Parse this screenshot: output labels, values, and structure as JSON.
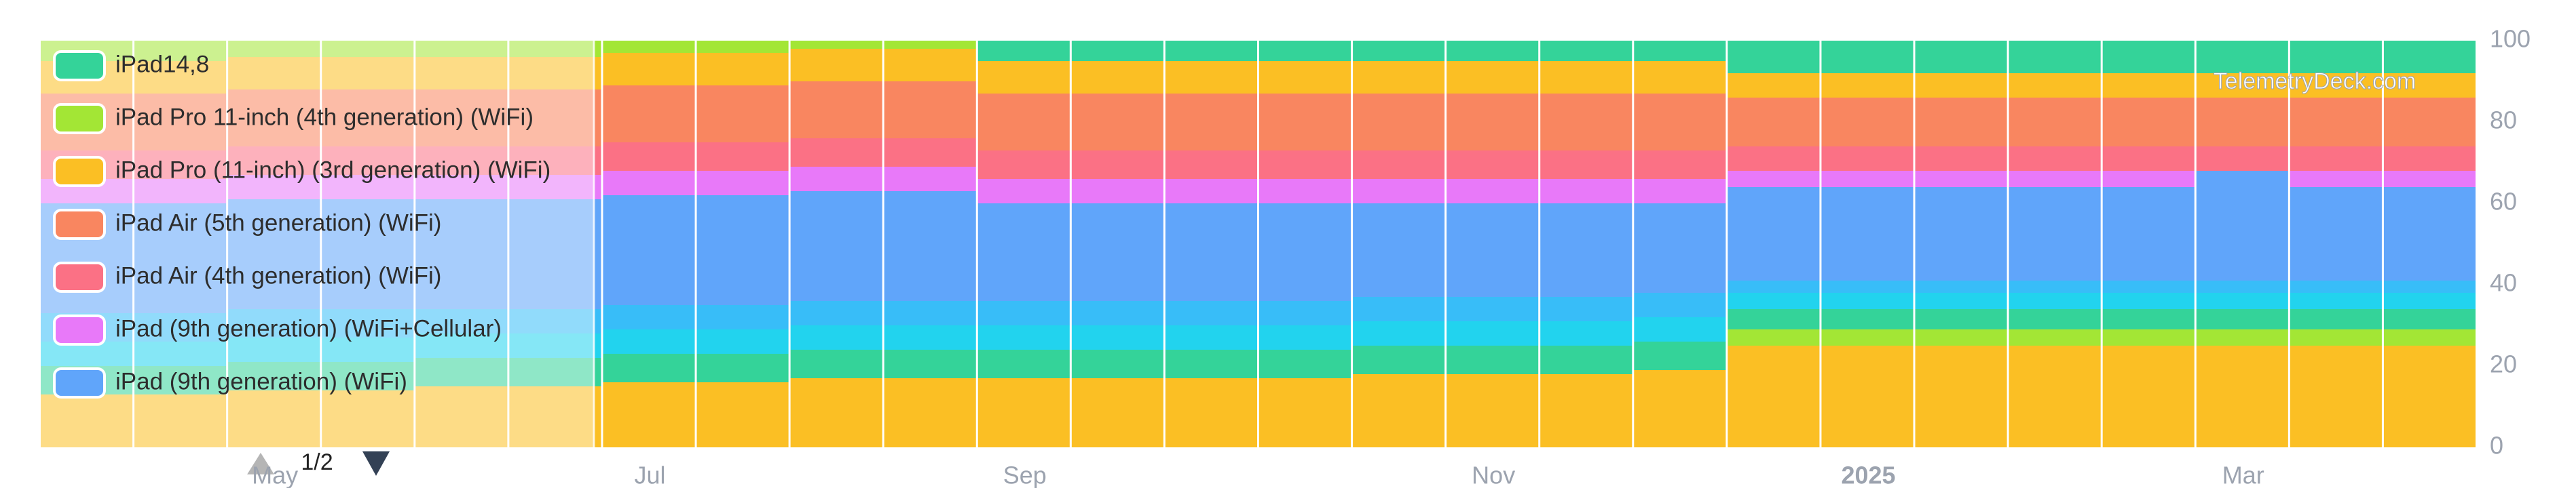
{
  "chart_data": {
    "type": "stacked-bar",
    "watermark": "TelemetryDeck.com",
    "legend_page": "1/2",
    "categories": [
      null,
      null,
      "May",
      null,
      null,
      null,
      "Jul",
      null,
      null,
      null,
      "Sep",
      null,
      null,
      null,
      null,
      "Nov",
      null,
      null,
      null,
      "2025",
      null,
      null,
      null,
      "Mar",
      null,
      null
    ],
    "ylim": [
      0,
      100
    ],
    "yticks": [
      0,
      20,
      40,
      60,
      80,
      100
    ],
    "series": [
      {
        "name": "iPad14,8",
        "color": "#34d399",
        "values": [
          0,
          0,
          0,
          0,
          0,
          0,
          0,
          0,
          0,
          0,
          5,
          5,
          5,
          5,
          5,
          5,
          5,
          5,
          8,
          8,
          8,
          8,
          8,
          8,
          8,
          8
        ]
      },
      {
        "name": "iPad Pro 11-inch (4th generation) (WiFi)",
        "color": "#a3e635",
        "values": [
          5,
          5,
          4,
          4,
          4,
          4,
          3,
          3,
          2,
          2,
          0,
          0,
          0,
          0,
          0,
          0,
          0,
          0,
          0,
          0,
          0,
          0,
          0,
          0,
          0,
          0
        ]
      },
      {
        "name": "iPad Pro (11-inch) (3rd generation) (WiFi)",
        "color": "#fbbf24",
        "values": [
          8,
          8,
          8,
          8,
          8,
          8,
          8,
          8,
          8,
          8,
          8,
          8,
          8,
          8,
          8,
          8,
          8,
          8,
          6,
          6,
          6,
          6,
          6,
          6,
          6,
          6
        ]
      },
      {
        "name": "iPad Air (5th generation) (WiFi)",
        "color": "#f98660",
        "values": [
          14,
          14,
          14,
          14,
          14,
          14,
          14,
          14,
          14,
          14,
          14,
          14,
          14,
          14,
          14,
          14,
          14,
          14,
          12,
          12,
          12,
          12,
          12,
          12,
          12,
          12
        ]
      },
      {
        "name": "iPad Air (4th generation) (WiFi)",
        "color": "#fb7185",
        "values": [
          7,
          7,
          7,
          7,
          7,
          7,
          7,
          7,
          7,
          7,
          7,
          7,
          7,
          7,
          7,
          7,
          7,
          7,
          6,
          6,
          6,
          6,
          6,
          6,
          6,
          6
        ]
      },
      {
        "name": "iPad (9th generation) (WiFi+Cellular)",
        "color": "#e879f9",
        "values": [
          6,
          6,
          6,
          6,
          6,
          6,
          6,
          6,
          6,
          6,
          6,
          6,
          6,
          6,
          6,
          6,
          6,
          6,
          4,
          4,
          4,
          4,
          4,
          0,
          4,
          4
        ]
      },
      {
        "name": "iPad (9th generation) (WiFi)",
        "color": "#60a5fa",
        "values": [
          27,
          27,
          27,
          27,
          27,
          27,
          27,
          27,
          27,
          27,
          24,
          24,
          24,
          24,
          23,
          23,
          23,
          22,
          23,
          23,
          23,
          23,
          23,
          27,
          23,
          23
        ]
      },
      {
        "color": "#38bdf8",
        "values": [
          7,
          7,
          7,
          7,
          6,
          6,
          6,
          6,
          6,
          6,
          6,
          6,
          6,
          6,
          6,
          6,
          6,
          6,
          3,
          3,
          3,
          3,
          3,
          3,
          3,
          3
        ]
      },
      {
        "color": "#22d3ee",
        "values": [
          6,
          6,
          6,
          6,
          6,
          6,
          6,
          6,
          6,
          6,
          6,
          6,
          6,
          6,
          6,
          6,
          6,
          6,
          4,
          4,
          4,
          4,
          4,
          4,
          4,
          4
        ]
      },
      {
        "color": "#34d399",
        "values": [
          7,
          7,
          7,
          7,
          7,
          7,
          7,
          7,
          7,
          7,
          7,
          7,
          7,
          7,
          7,
          7,
          7,
          7,
          5,
          5,
          5,
          5,
          5,
          5,
          5,
          5
        ]
      },
      {
        "color": "#a3e635",
        "values": [
          0,
          0,
          0,
          0,
          0,
          0,
          0,
          0,
          0,
          0,
          0,
          0,
          0,
          0,
          0,
          0,
          0,
          0,
          4,
          4,
          4,
          4,
          4,
          4,
          4,
          4
        ]
      },
      {
        "color": "#fbbf24",
        "values": [
          13,
          13,
          14,
          14,
          15,
          15,
          16,
          16,
          17,
          17,
          17,
          17,
          17,
          17,
          18,
          18,
          18,
          19,
          25,
          25,
          25,
          25,
          25,
          25,
          25,
          25
        ]
      }
    ]
  }
}
